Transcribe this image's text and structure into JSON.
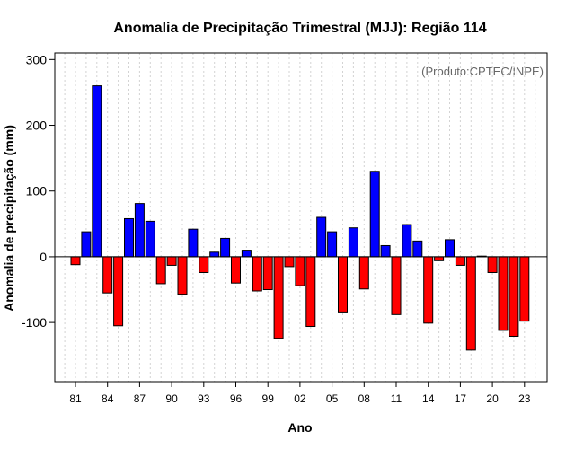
{
  "chart_data": {
    "type": "bar",
    "title": "Anomalia de Precipitação Trimestral (MJJ): Região 114",
    "xlabel": "Ano",
    "ylabel": "Anomalia de precipitação (mm)",
    "credit": "(Produto:CPTEC/INPE)",
    "ylim": [
      -190,
      310
    ],
    "y_ticks": [
      300,
      200,
      100,
      0,
      -100
    ],
    "y_tick_labels": [
      "300",
      "200",
      "100",
      "0",
      "-100"
    ],
    "x_tick_labels": [
      "81",
      "84",
      "87",
      "90",
      "93",
      "96",
      "99",
      "02",
      "05",
      "08",
      "11",
      "14",
      "17",
      "20",
      "23"
    ],
    "x_tick_years": [
      1981,
      1984,
      1987,
      1990,
      1993,
      1996,
      1999,
      2002,
      2005,
      2008,
      2011,
      2014,
      2017,
      2020,
      2023
    ],
    "grid": "vertical dotted",
    "colors": {
      "positive": "#0000ff",
      "negative": "#ff0000"
    },
    "years": [
      1981,
      1982,
      1983,
      1984,
      1985,
      1986,
      1987,
      1988,
      1989,
      1990,
      1991,
      1992,
      1993,
      1994,
      1995,
      1996,
      1997,
      1998,
      1999,
      2000,
      2001,
      2002,
      2003,
      2004,
      2005,
      2006,
      2007,
      2008,
      2009,
      2010,
      2011,
      2012,
      2013,
      2014,
      2015,
      2016,
      2017,
      2018,
      2019,
      2020,
      2021,
      2022,
      2023
    ],
    "values": [
      -12,
      38,
      260,
      -55,
      -105,
      58,
      81,
      54,
      -41,
      -13,
      -57,
      42,
      -24,
      7,
      28,
      -40,
      10,
      -52,
      -50,
      -124,
      -15,
      -44,
      -106,
      60,
      38,
      -84,
      44,
      -49,
      130,
      17,
      -88,
      49,
      24,
      -101,
      -6,
      26,
      -13,
      -142,
      1,
      -24,
      -112,
      -121,
      -98
    ]
  }
}
